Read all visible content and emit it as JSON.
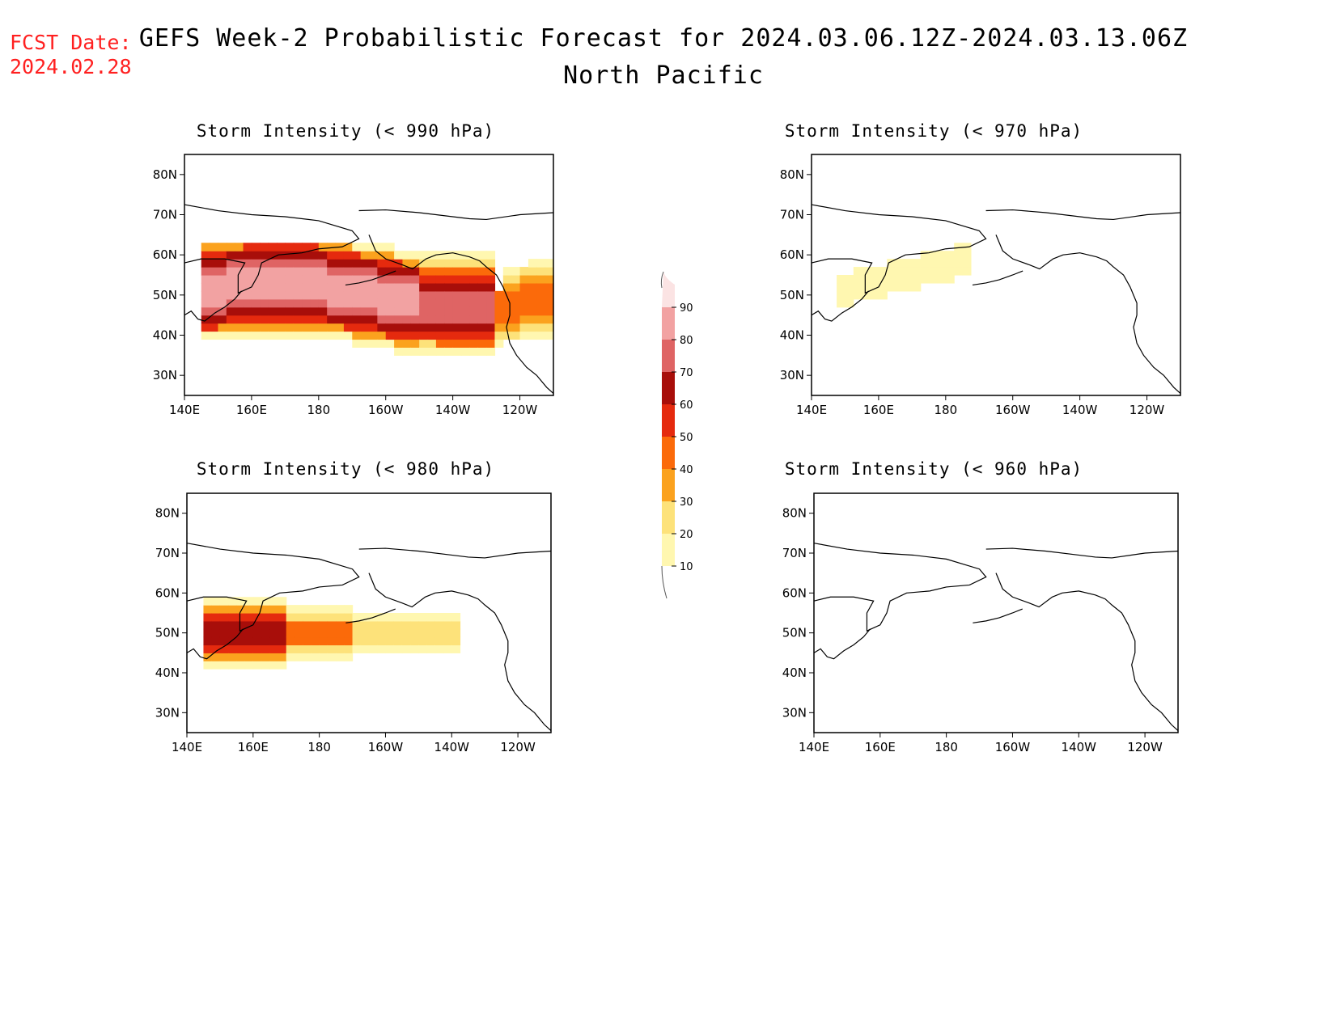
{
  "fcst_date": {
    "label": "FCST Date:",
    "value": "2024.02.28"
  },
  "title": {
    "line1": "GEFS Week-2 Probabilistic Forecast for 2024.03.06.12Z-2024.03.13.06Z",
    "line2": "North Pacific"
  },
  "colors": {
    "coast": "#000000",
    "levels": [
      "#ffffbf",
      "#fee090",
      "#fdae61",
      "#fd8d3c",
      "#f03b20",
      "#bd0026",
      "#d96060",
      "#f2a0a0",
      "#fbe0e0"
    ]
  },
  "colorbar": {
    "levels": [
      10,
      20,
      30,
      40,
      50,
      60,
      70,
      80,
      90
    ],
    "colors": [
      "#fff7b0",
      "#fde27a",
      "#fba21e",
      "#fb6a0a",
      "#e52a0e",
      "#a80e0a",
      "#df6464",
      "#f2a2a2",
      "#fbe3e3"
    ]
  },
  "axes": {
    "lon_ticks": [
      "140E",
      "160E",
      "180",
      "160W",
      "140W",
      "120W"
    ],
    "lat_ticks": [
      "80N",
      "70N",
      "60N",
      "50N",
      "40N",
      "30N"
    ],
    "lon_range": [
      140,
      250
    ],
    "lat_range": [
      25,
      85
    ]
  },
  "panels": [
    {
      "id": "p990",
      "title": "Storm Intensity (< 990 hPa)",
      "max_level": 90
    },
    {
      "id": "p970",
      "title": "Storm Intensity (< 970 hPa)",
      "max_level": 10
    },
    {
      "id": "p980",
      "title": "Storm Intensity (< 980 hPa)",
      "max_level": 60
    },
    {
      "id": "p960",
      "title": "Storm Intensity (< 960 hPa)",
      "max_level": 0
    }
  ]
}
